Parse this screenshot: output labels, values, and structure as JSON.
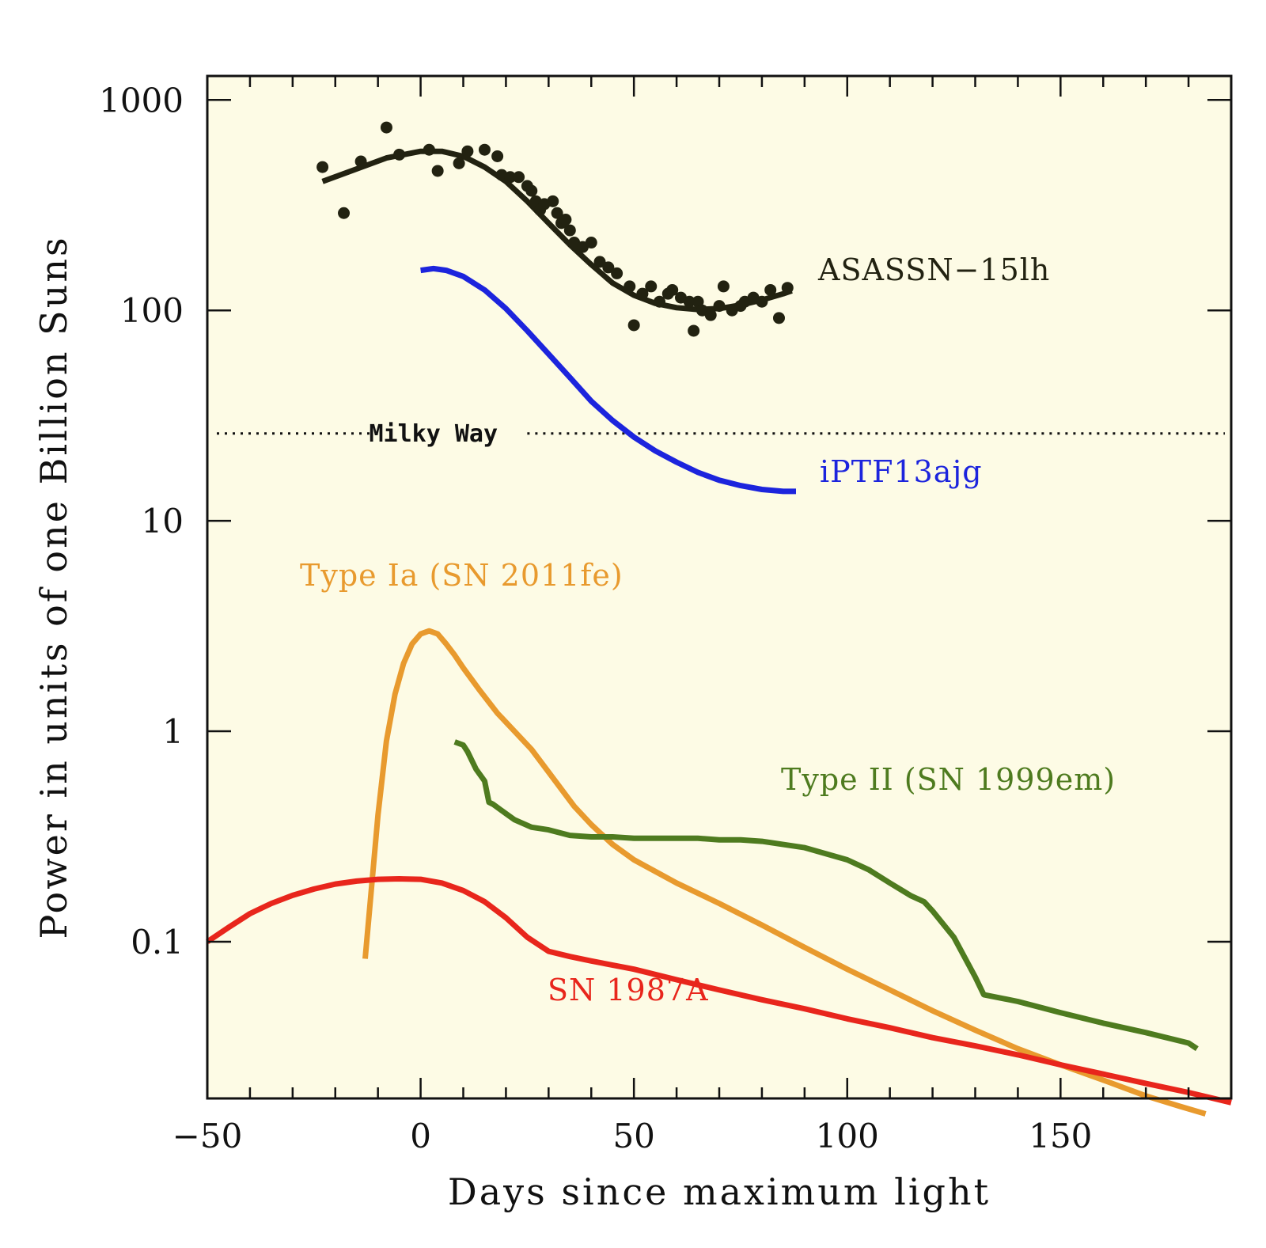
{
  "chart_data": {
    "type": "line",
    "xlabel": "Days since maximum light",
    "ylabel": "Power in units of one Billion Suns",
    "xlim": [
      -50,
      190
    ],
    "ylim": [
      0.018,
      1300
    ],
    "yscale": "log",
    "xticks": [
      -50,
      0,
      50,
      100,
      150
    ],
    "xtick_labels": [
      "−50",
      "0",
      "50",
      "100",
      "150"
    ],
    "yticks": [
      0.1,
      1,
      10,
      100,
      1000
    ],
    "ytick_labels": [
      "0.1",
      "1",
      "10",
      "100",
      "1000"
    ],
    "grid": false,
    "background": "#fdfbe5",
    "reference_line": {
      "label": "Milky Way",
      "y": 26,
      "color": "#111111"
    },
    "series": [
      {
        "name": "ASASSN−15lh",
        "color": "#222211",
        "fit": {
          "x": [
            -23,
            -15,
            -8,
            0,
            5,
            10,
            15,
            20,
            25,
            30,
            35,
            40,
            45,
            50,
            55,
            60,
            65,
            70,
            75,
            80,
            85,
            87
          ],
          "y": [
            410,
            470,
            530,
            570,
            570,
            540,
            480,
            410,
            330,
            260,
            205,
            165,
            135,
            118,
            108,
            103,
            101,
            102,
            106,
            112,
            120,
            124
          ]
        },
        "points": {
          "x": [
            -23,
            -18,
            -14,
            -8,
            -5,
            2,
            4,
            9,
            11,
            15,
            18,
            19,
            21,
            23,
            25,
            26,
            27,
            28,
            29,
            31,
            32,
            33,
            34,
            35,
            36,
            38,
            40,
            42,
            44,
            46,
            49,
            50,
            52,
            54,
            56,
            58,
            59,
            61,
            63,
            64,
            65,
            66,
            68,
            70,
            71,
            73,
            75,
            76,
            78,
            80,
            82,
            84,
            86
          ],
          "y": [
            480,
            290,
            510,
            740,
            550,
            580,
            460,
            500,
            570,
            580,
            540,
            440,
            430,
            430,
            390,
            370,
            330,
            300,
            320,
            330,
            290,
            260,
            270,
            240,
            210,
            200,
            210,
            170,
            160,
            150,
            130,
            85,
            120,
            130,
            110,
            120,
            125,
            115,
            110,
            80,
            110,
            100,
            95,
            105,
            130,
            100,
            105,
            110,
            115,
            110,
            125,
            92,
            128
          ]
        }
      },
      {
        "name": "iPTF13ajg",
        "color": "#1c24dd",
        "x": [
          0,
          3,
          6,
          10,
          15,
          20,
          25,
          30,
          35,
          40,
          45,
          50,
          55,
          60,
          65,
          70,
          75,
          80,
          85,
          88
        ],
        "y": [
          155,
          158,
          155,
          145,
          125,
          102,
          80,
          62,
          48,
          37,
          30,
          25,
          21.5,
          19,
          17,
          15.6,
          14.7,
          14.1,
          13.8,
          13.8
        ]
      },
      {
        "name": "Type Ia (SN 2011fe)",
        "color": "#e89a2e",
        "x": [
          -13,
          -12,
          -10,
          -8,
          -6,
          -4,
          -2,
          0,
          2,
          4,
          6,
          8,
          10,
          14,
          18,
          22,
          26,
          30,
          36,
          40,
          45,
          50,
          60,
          70,
          80,
          90,
          100,
          110,
          120,
          130,
          140,
          150,
          160,
          170,
          178,
          184
        ],
        "y": [
          0.083,
          0.14,
          0.4,
          0.9,
          1.5,
          2.1,
          2.6,
          2.9,
          3.0,
          2.9,
          2.6,
          2.3,
          2.0,
          1.55,
          1.22,
          1.0,
          0.82,
          0.64,
          0.44,
          0.36,
          0.29,
          0.245,
          0.19,
          0.152,
          0.12,
          0.094,
          0.074,
          0.059,
          0.047,
          0.038,
          0.031,
          0.026,
          0.022,
          0.0185,
          0.0165,
          0.0152
        ]
      },
      {
        "name": "Type II (SN 1999em)",
        "color": "#4e7b1f",
        "x": [
          8,
          10,
          11,
          13,
          15,
          16,
          17,
          19,
          22,
          26,
          30,
          35,
          40,
          45,
          50,
          55,
          60,
          65,
          70,
          75,
          80,
          90,
          100,
          105,
          110,
          115,
          118,
          120,
          125,
          130,
          132,
          140,
          150,
          160,
          170,
          180,
          182
        ],
        "y": [
          0.89,
          0.86,
          0.8,
          0.66,
          0.58,
          0.46,
          0.45,
          0.42,
          0.38,
          0.35,
          0.34,
          0.32,
          0.315,
          0.315,
          0.31,
          0.31,
          0.31,
          0.31,
          0.305,
          0.305,
          0.3,
          0.28,
          0.245,
          0.22,
          0.19,
          0.165,
          0.155,
          0.14,
          0.105,
          0.068,
          0.056,
          0.052,
          0.046,
          0.041,
          0.037,
          0.033,
          0.031
        ]
      },
      {
        "name": "SN 1987A",
        "color": "#e8261c",
        "x": [
          -50,
          -45,
          -40,
          -35,
          -30,
          -25,
          -20,
          -15,
          -10,
          -5,
          0,
          5,
          10,
          15,
          20,
          25,
          30,
          35,
          40,
          50,
          60,
          70,
          80,
          90,
          100,
          110,
          120,
          130,
          140,
          150,
          160,
          170,
          180,
          190
        ],
        "y": [
          0.1,
          0.117,
          0.136,
          0.152,
          0.166,
          0.178,
          0.188,
          0.194,
          0.198,
          0.199,
          0.198,
          0.19,
          0.175,
          0.155,
          0.13,
          0.105,
          0.09,
          0.085,
          0.081,
          0.074,
          0.066,
          0.059,
          0.053,
          0.048,
          0.043,
          0.039,
          0.035,
          0.032,
          0.029,
          0.026,
          0.0235,
          0.0212,
          0.0192,
          0.0172
        ]
      }
    ]
  }
}
